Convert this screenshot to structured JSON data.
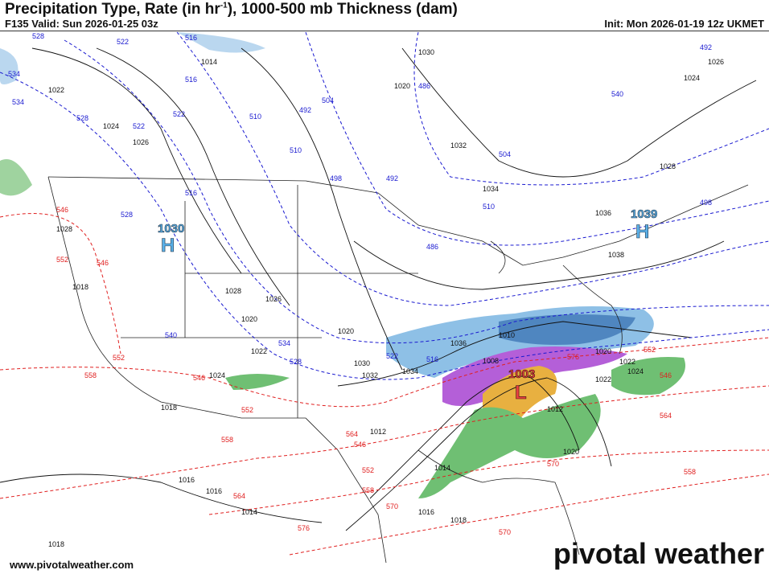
{
  "header": {
    "title_main": "Precipitation Type, Rate (in hr",
    "title_sup": "-1",
    "title_rest": "), 1000-500 mb Thickness (dam)",
    "valid": "F135 Valid: Sun 2026-01-25 03z",
    "init": "Init: Mon 2026-01-19 12z UKMET"
  },
  "colors": {
    "rain": "#4caf50",
    "snow": "#5aa0d8",
    "ice": "#9b3fc8",
    "mix": "#e8b040",
    "thickness_cold": "#1a1ad0",
    "thickness_warm": "#e02020",
    "isobar": "#111111"
  },
  "pressure_centers": [
    {
      "type": "H",
      "value": "1030"
    },
    {
      "type": "H",
      "value": "1039"
    },
    {
      "type": "L",
      "value": "1003"
    }
  ],
  "isobar_labels": [
    "1018",
    "1016",
    "1014",
    "1020",
    "1022",
    "1024",
    "1026",
    "1028",
    "1030",
    "1032",
    "1034",
    "1036",
    "1038",
    "1018",
    "1020",
    "1022",
    "1024",
    "1026",
    "1028",
    "1030",
    "1032",
    "1034",
    "1036",
    "1010",
    "1008",
    "1012",
    "1014",
    "1016",
    "1018",
    "1020",
    "1022",
    "1024",
    "1020",
    "1012",
    "1014",
    "1016",
    "1018",
    "1020",
    "1022",
    "1024",
    "1026",
    "1028"
  ],
  "thickness_labels_cold": [
    "528",
    "522",
    "516",
    "534",
    "528",
    "522",
    "516",
    "510",
    "492",
    "486",
    "540",
    "534",
    "528",
    "522",
    "516",
    "510",
    "504",
    "498",
    "492",
    "486",
    "540",
    "534",
    "528",
    "522",
    "516",
    "510",
    "504",
    "498",
    "492"
  ],
  "thickness_labels_warm": [
    "546",
    "552",
    "546",
    "558",
    "552",
    "546",
    "552",
    "558",
    "564",
    "546",
    "552",
    "558",
    "564",
    "570",
    "576",
    "570",
    "564",
    "558",
    "552",
    "546",
    "576",
    "570"
  ],
  "footer": {
    "site": "www.pivotalweather.com",
    "logo": "pivotal weather"
  }
}
